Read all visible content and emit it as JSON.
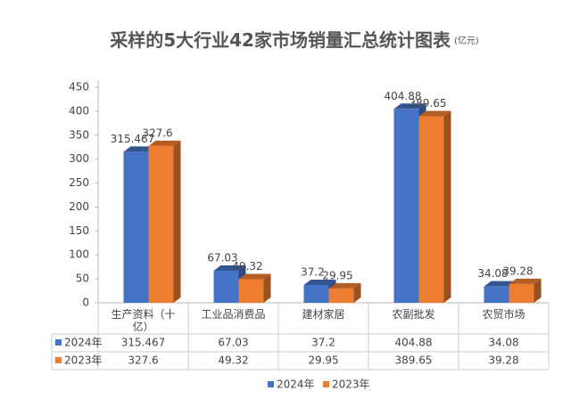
{
  "chart_data": {
    "type": "bar3d",
    "title": "采样的5大行业42家市场销量汇总统计图表",
    "unit": "(亿元)",
    "categories": [
      "生产资料（十亿）",
      "工业品消费品",
      "建材家居",
      "农副批发",
      "农贸市场"
    ],
    "series": [
      {
        "name": "2024年",
        "color": "#4472c4",
        "values": [
          315.467,
          67.03,
          37.2,
          404.88,
          34.08
        ]
      },
      {
        "name": "2023年",
        "color": "#ed7d31",
        "values": [
          327.6,
          49.32,
          29.95,
          389.65,
          39.28
        ]
      }
    ],
    "ylim": [
      0,
      450
    ],
    "yticks": [
      0,
      50,
      100,
      150,
      200,
      250,
      300,
      350,
      400,
      450
    ],
    "grid": false,
    "legend": "bottom",
    "data_table": true
  }
}
